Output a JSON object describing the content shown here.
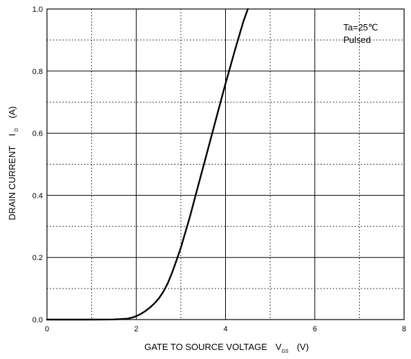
{
  "chart_data": {
    "type": "line",
    "xlabel": "GATE TO SOURCE VOLTAGE",
    "xlabel_symbol": "V",
    "xlabel_subscript": "GS",
    "xlabel_unit": "(V)",
    "ylabel": "DRAIN CURRENT",
    "ylabel_symbol": "I",
    "ylabel_subscript": "D",
    "ylabel_unit": "(A)",
    "xlim": [
      0,
      8
    ],
    "ylim": [
      0,
      1.0
    ],
    "x_ticks": [
      "0",
      "2",
      "4",
      "6",
      "8"
    ],
    "y_ticks": [
      "0.0",
      "0.2",
      "0.4",
      "0.6",
      "0.8",
      "1.0"
    ],
    "grid": true,
    "annotations": [
      "Ta=25℃",
      "Pulsed"
    ],
    "series": [
      {
        "x": [
          0,
          1.0,
          1.5,
          1.8,
          1.9,
          2.0,
          2.1,
          2.2,
          2.3,
          2.4,
          2.5,
          2.6,
          2.7,
          2.8,
          2.9,
          3.0,
          3.2,
          3.4,
          3.6,
          3.8,
          4.0,
          4.2,
          4.4,
          4.5
        ],
        "y": [
          0,
          0,
          0.0005,
          0.003,
          0.006,
          0.011,
          0.018,
          0.027,
          0.038,
          0.051,
          0.067,
          0.088,
          0.115,
          0.15,
          0.19,
          0.232,
          0.33,
          0.438,
          0.545,
          0.653,
          0.76,
          0.862,
          0.96,
          1.0
        ]
      }
    ]
  }
}
